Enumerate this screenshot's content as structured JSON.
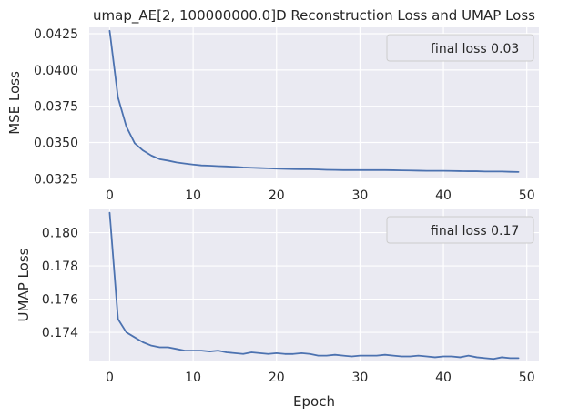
{
  "chart_data": [
    {
      "type": "line",
      "title": "umap_AE[2, 100000000.0]D Reconstruction Loss and UMAP Loss",
      "xlabel": "",
      "ylabel": "MSE Loss",
      "xlim": [
        -2.45,
        51.45
      ],
      "ylim": [
        0.03246,
        0.04294
      ],
      "xticks": [
        0,
        10,
        20,
        30,
        40,
        50
      ],
      "xtick_labels": [
        "0",
        "10",
        "20",
        "30",
        "40",
        "50"
      ],
      "yticks": [
        0.0325,
        0.035,
        0.0375,
        0.04,
        0.0425
      ],
      "ytick_labels": [
        "0.0325",
        "0.0350",
        "0.0375",
        "0.0400",
        "0.0425"
      ],
      "grid": true,
      "legend_position": "upper right",
      "legend_label": "final loss 0.03",
      "series": [
        {
          "name": "final loss 0.03",
          "color": "#4c72b0",
          "x": [
            0,
            1,
            2,
            3,
            4,
            5,
            6,
            7,
            8,
            9,
            10,
            11,
            12,
            13,
            14,
            15,
            16,
            17,
            18,
            19,
            20,
            21,
            22,
            23,
            24,
            25,
            26,
            27,
            28,
            29,
            30,
            31,
            32,
            33,
            34,
            35,
            36,
            37,
            38,
            39,
            40,
            41,
            42,
            43,
            44,
            45,
            46,
            47,
            48,
            49
          ],
          "y": [
            0.0427,
            0.0381,
            0.0361,
            0.03495,
            0.03445,
            0.0341,
            0.03385,
            0.03375,
            0.03363,
            0.03355,
            0.03348,
            0.03342,
            0.0334,
            0.03337,
            0.03335,
            0.03332,
            0.03328,
            0.03326,
            0.03324,
            0.03322,
            0.0332,
            0.03318,
            0.03317,
            0.03316,
            0.03316,
            0.03314,
            0.03312,
            0.03311,
            0.0331,
            0.0331,
            0.0331,
            0.0331,
            0.0331,
            0.0331,
            0.03309,
            0.03308,
            0.03307,
            0.03306,
            0.03305,
            0.03305,
            0.03305,
            0.03304,
            0.03303,
            0.03302,
            0.03302,
            0.033,
            0.033,
            0.033,
            0.03298,
            0.03297
          ]
        }
      ]
    },
    {
      "type": "line",
      "title": "",
      "xlabel": "Epoch",
      "ylabel": "UMAP Loss",
      "xlim": [
        -2.45,
        51.45
      ],
      "ylim": [
        0.17225,
        0.1814
      ],
      "xticks": [
        0,
        10,
        20,
        30,
        40,
        50
      ],
      "xtick_labels": [
        "0",
        "10",
        "20",
        "30",
        "40",
        "50"
      ],
      "yticks": [
        0.174,
        0.176,
        0.178,
        0.18
      ],
      "ytick_labels": [
        "0.174",
        "0.176",
        "0.178",
        "0.180"
      ],
      "grid": true,
      "legend_position": "upper right",
      "legend_label": "final loss 0.17",
      "series": [
        {
          "name": "final loss 0.17",
          "color": "#4c72b0",
          "x": [
            0,
            1,
            2,
            3,
            4,
            5,
            6,
            7,
            8,
            9,
            10,
            11,
            12,
            13,
            14,
            15,
            16,
            17,
            18,
            19,
            20,
            21,
            22,
            23,
            24,
            25,
            26,
            27,
            28,
            29,
            30,
            31,
            32,
            33,
            34,
            35,
            36,
            37,
            38,
            39,
            40,
            41,
            42,
            43,
            44,
            45,
            46,
            47,
            48,
            49
          ],
          "y": [
            0.1812,
            0.1748,
            0.174,
            0.1737,
            0.1734,
            0.1732,
            0.1731,
            0.1731,
            0.173,
            0.1729,
            0.1729,
            0.1729,
            0.17285,
            0.1729,
            0.1728,
            0.17275,
            0.1727,
            0.1728,
            0.17275,
            0.1727,
            0.17275,
            0.1727,
            0.1727,
            0.17275,
            0.1727,
            0.1726,
            0.1726,
            0.17265,
            0.1726,
            0.17255,
            0.1726,
            0.1726,
            0.1726,
            0.17265,
            0.1726,
            0.17255,
            0.17255,
            0.1726,
            0.17255,
            0.1725,
            0.17255,
            0.17255,
            0.1725,
            0.1726,
            0.1725,
            0.17245,
            0.1724,
            0.1725,
            0.17245,
            0.17245
          ]
        }
      ]
    }
  ],
  "colors": {
    "axes_background": "#eaeaf2",
    "grid": "#ffffff",
    "line": "#4c72b0",
    "text": "#262626"
  }
}
